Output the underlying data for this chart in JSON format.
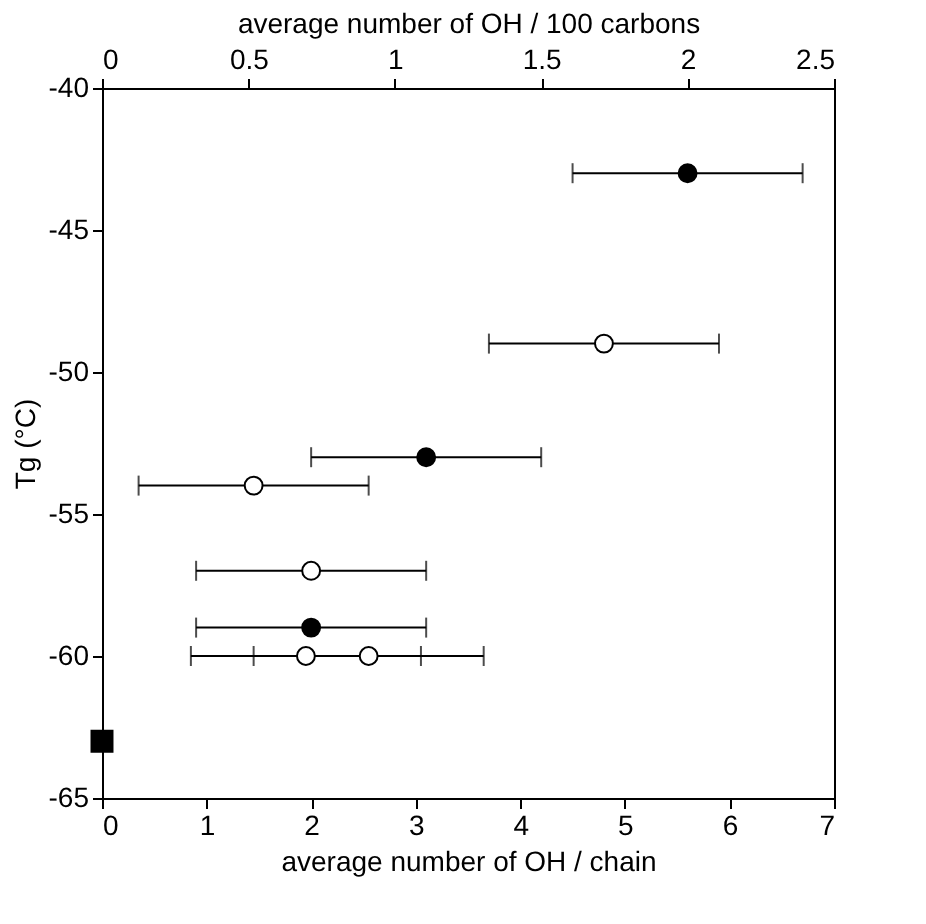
{
  "chart_data": {
    "type": "scatter",
    "xlabel": "average number of OH / chain",
    "ylabel": "Tg (°C)",
    "x2label": "average number of OH / 100 carbons",
    "xlim": [
      0,
      7
    ],
    "xticks": [
      0,
      1,
      2,
      3,
      4,
      5,
      6,
      7
    ],
    "ylim": [
      -65,
      -40
    ],
    "yticks": [
      -65,
      -60,
      -55,
      -50,
      -45,
      -40
    ],
    "x2lim": [
      0,
      2.5
    ],
    "x2ticks": [
      0,
      0.5,
      1,
      1.5,
      2,
      2.5
    ],
    "grid": false,
    "series": [
      {
        "color": "#000000",
        "marker": "circle",
        "x": [
          5.6,
          3.1,
          2.0
        ],
        "values": [
          -43,
          -53,
          -59
        ],
        "xerrors": [
          1.1,
          1.1,
          1.1
        ]
      },
      {
        "color": "#ffffff",
        "marker": "circle",
        "x": [
          4.8,
          1.45,
          2.0,
          1.95,
          2.55
        ],
        "values": [
          -49,
          -54,
          -57,
          -60,
          -60
        ],
        "xerrors": [
          1.1,
          1.1,
          1.1,
          1.1,
          1.1
        ]
      },
      {
        "color": "#000000",
        "marker": "square",
        "x": [
          0
        ],
        "values": [
          -63
        ]
      }
    ]
  }
}
